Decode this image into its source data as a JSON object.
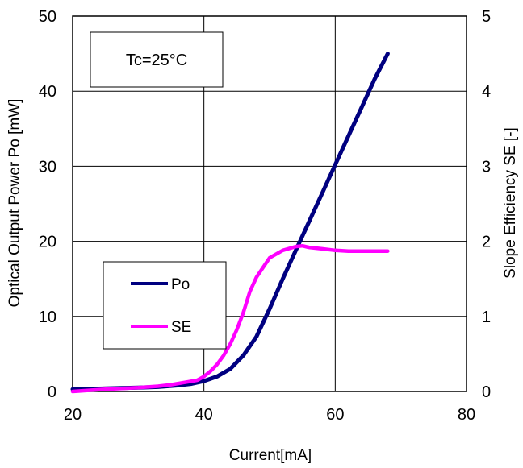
{
  "chart_data": {
    "type": "line",
    "xlabel": "Current[mA]",
    "ylabel": "Optical Output Power Po [mW]",
    "y2label": "Slope Efficiency SE [-]",
    "xlim": [
      20,
      80
    ],
    "ylim": [
      0,
      50
    ],
    "y2lim": [
      0,
      5
    ],
    "xticks": [
      "20",
      "40",
      "60",
      "80"
    ],
    "yticks": [
      "0",
      "10",
      "20",
      "30",
      "40",
      "50"
    ],
    "y2ticks": [
      "0",
      "1",
      "2",
      "3",
      "4",
      "5"
    ],
    "grid": true,
    "annotation": "Tc=25°C",
    "legend_position": "lower-left",
    "series": [
      {
        "name": "Po",
        "axis": "left",
        "color": "#000080",
        "x": [
          20,
          25,
          30,
          33,
          36,
          38,
          40,
          42,
          44,
          46,
          48,
          50,
          52,
          54,
          56,
          58,
          60,
          62,
          64,
          66,
          68
        ],
        "y": [
          0.3,
          0.4,
          0.5,
          0.6,
          0.8,
          1.0,
          1.4,
          2.0,
          3.0,
          4.8,
          7.3,
          11.0,
          15.0,
          18.8,
          22.6,
          26.4,
          30.2,
          34.0,
          37.8,
          41.6,
          45.0
        ]
      },
      {
        "name": "SE",
        "axis": "right",
        "color": "#ff00ff",
        "x": [
          20,
          25,
          30,
          33,
          35,
          37,
          39,
          40,
          41,
          42,
          43,
          44,
          45,
          46,
          47,
          48,
          50,
          52,
          54,
          55,
          56,
          58,
          60,
          62,
          64,
          66,
          68
        ],
        "y": [
          0.0,
          0.03,
          0.05,
          0.07,
          0.09,
          0.12,
          0.15,
          0.2,
          0.27,
          0.36,
          0.48,
          0.63,
          0.82,
          1.05,
          1.33,
          1.52,
          1.78,
          1.88,
          1.93,
          1.94,
          1.92,
          1.9,
          1.88,
          1.87,
          1.87,
          1.87,
          1.87
        ]
      }
    ]
  }
}
